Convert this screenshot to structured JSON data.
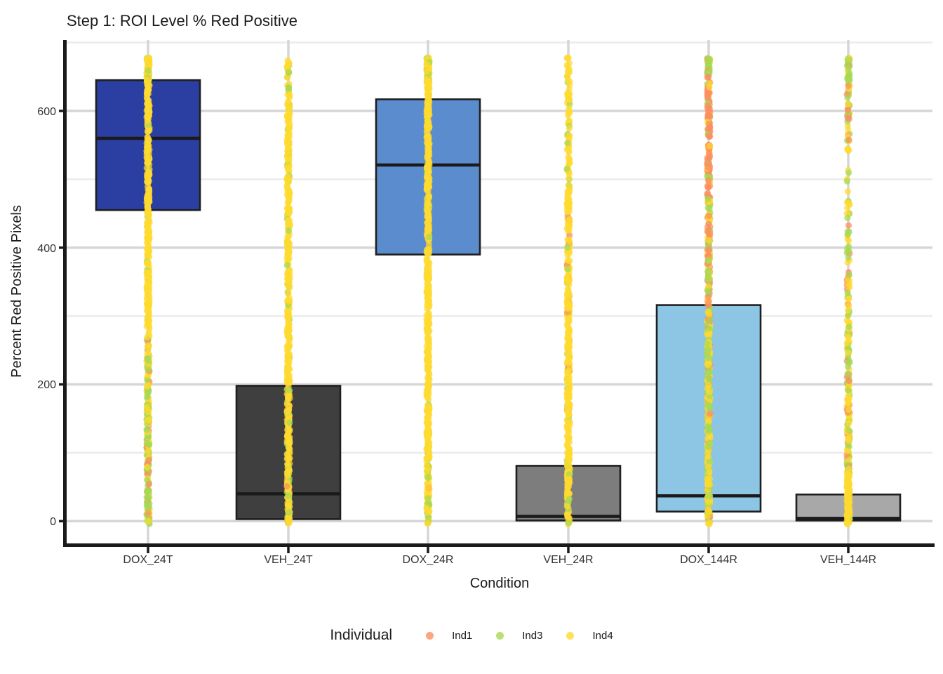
{
  "title": "Step 1: ROI Level % Red Positive",
  "axes": {
    "x_label": "Condition",
    "y_label": "Percent Red Positive Pixels"
  },
  "legend": {
    "title": "Individual",
    "items": [
      {
        "label": "Ind1",
        "color": "#FC8D62"
      },
      {
        "label": "Ind3",
        "color": "#A6D854"
      },
      {
        "label": "Ind4",
        "color": "#FFD92F"
      }
    ]
  },
  "chart_data": {
    "type": "boxplot+jitter",
    "title": "Step 1: ROI Level % Red Positive",
    "xlabel": "Condition",
    "ylabel": "Percent Red Positive Pixels",
    "categories": [
      "DOX_24T",
      "VEH_24T",
      "DOX_24R",
      "VEH_24R",
      "DOX_144R",
      "VEH_144R"
    ],
    "y_axis": {
      "ticks": [
        0,
        200,
        400,
        600
      ],
      "tick_labels": [
        "0",
        "200",
        "400",
        "600"
      ],
      "minor_ticks": [
        100,
        300,
        500,
        700
      ],
      "range": [
        -30,
        700
      ]
    },
    "style": {
      "grid_major": "#D6D6D6",
      "grid_minor": "#EBEBEB",
      "axis_line": "#1A1A1A",
      "box_border": "#1F1F1F",
      "median_line": "#1A1A1A",
      "background": "#FFFFFF"
    },
    "boxes": [
      {
        "condition": "DOX_24T",
        "fill": "#2B3EA1",
        "q1": 455,
        "median": 560,
        "q3": 645
      },
      {
        "condition": "VEH_24T",
        "fill": "#3F3F3F",
        "q1": 3,
        "median": 40,
        "q3": 198
      },
      {
        "condition": "DOX_24R",
        "fill": "#5B8CCD",
        "q1": 390,
        "median": 521,
        "q3": 617
      },
      {
        "condition": "VEH_24R",
        "fill": "#7D7D7D",
        "q1": 1,
        "median": 7,
        "q3": 81
      },
      {
        "condition": "DOX_144R",
        "fill": "#8CC6E4",
        "q1": 14,
        "median": 37,
        "q3": 316
      },
      {
        "condition": "VEH_144R",
        "fill": "#A8A8A8",
        "q1": 1,
        "median": 4,
        "q3": 39
      }
    ],
    "points": {
      "alpha": 0.72,
      "radius": 4.6,
      "jitter_halfwidth": 2,
      "value_cap": 678,
      "individual_colors": {
        "Ind1": "#FC8D62",
        "Ind3": "#A6D854",
        "Ind4": "#FFD92F"
      },
      "strips": [
        {
          "condition": "DOX_24T",
          "segments": [
            {
              "v_min": 640,
              "v_max": 678,
              "n": 80,
              "mix": {
                "Ind4": 0.92,
                "Ind3": 0.08
              }
            },
            {
              "v_min": 270,
              "v_max": 640,
              "n": 300,
              "mix": {
                "Ind4": 0.97,
                "Ind3": 0.03
              }
            },
            {
              "v_min": 150,
              "v_max": 270,
              "n": 90,
              "mix": {
                "Ind3": 0.5,
                "Ind4": 0.45,
                "Ind1": 0.05
              }
            },
            {
              "v_min": -5,
              "v_max": 150,
              "n": 130,
              "mix": {
                "Ind3": 0.55,
                "Ind4": 0.28,
                "Ind1": 0.17
              }
            }
          ]
        },
        {
          "condition": "VEH_24T",
          "segments": [
            {
              "v_min": 600,
              "v_max": 678,
              "n": 45,
              "mix": {
                "Ind4": 0.8,
                "Ind3": 0.2
              }
            },
            {
              "v_min": 200,
              "v_max": 600,
              "n": 280,
              "mix": {
                "Ind4": 0.95,
                "Ind3": 0.05
              }
            },
            {
              "v_min": -5,
              "v_max": 200,
              "n": 170,
              "mix": {
                "Ind4": 0.75,
                "Ind3": 0.22,
                "Ind1": 0.03
              }
            }
          ]
        },
        {
          "condition": "DOX_24R",
          "segments": [
            {
              "v_min": 645,
              "v_max": 678,
              "n": 60,
              "mix": {
                "Ind4": 0.8,
                "Ind3": 0.2
              }
            },
            {
              "v_min": 110,
              "v_max": 645,
              "n": 420,
              "mix": {
                "Ind4": 0.97,
                "Ind3": 0.03
              }
            },
            {
              "v_min": -5,
              "v_max": 110,
              "n": 95,
              "mix": {
                "Ind4": 0.7,
                "Ind3": 0.27,
                "Ind1": 0.03
              }
            }
          ]
        },
        {
          "condition": "VEH_24R",
          "segments": [
            {
              "v_min": 580,
              "v_max": 678,
              "n": 40,
              "mix": {
                "Ind4": 0.85,
                "Ind3": 0.15
              }
            },
            {
              "v_min": 470,
              "v_max": 580,
              "n": 45,
              "mix": {
                "Ind4": 0.9,
                "Ind3": 0.1
              }
            },
            {
              "v_min": -5,
              "v_max": 470,
              "n": 380,
              "mix": {
                "Ind4": 0.88,
                "Ind3": 0.08,
                "Ind1": 0.04
              }
            }
          ]
        },
        {
          "condition": "DOX_144R",
          "segments": [
            {
              "v_min": 652,
              "v_max": 678,
              "n": 30,
              "mix": {
                "Ind3": 0.7,
                "Ind1": 0.2,
                "Ind4": 0.1
              }
            },
            {
              "v_min": 490,
              "v_max": 652,
              "n": 130,
              "mix": {
                "Ind1": 0.72,
                "Ind3": 0.16,
                "Ind4": 0.12
              }
            },
            {
              "v_min": 280,
              "v_max": 490,
              "n": 150,
              "mix": {
                "Ind1": 0.34,
                "Ind4": 0.36,
                "Ind3": 0.3
              }
            },
            {
              "v_min": -5,
              "v_max": 280,
              "n": 230,
              "mix": {
                "Ind4": 0.52,
                "Ind3": 0.36,
                "Ind1": 0.12
              }
            }
          ]
        },
        {
          "condition": "VEH_144R",
          "segments": [
            {
              "v_min": 640,
              "v_max": 678,
              "n": 32,
              "mix": {
                "Ind3": 0.75,
                "Ind4": 0.2,
                "Ind1": 0.05
              }
            },
            {
              "v_min": 555,
              "v_max": 640,
              "n": 38,
              "mix": {
                "Ind4": 0.45,
                "Ind3": 0.35,
                "Ind1": 0.2
              }
            },
            {
              "v_min": 450,
              "v_max": 555,
              "n": 16,
              "mix": {
                "Ind4": 0.7,
                "Ind3": 0.3
              }
            },
            {
              "v_min": 290,
              "v_max": 450,
              "n": 48,
              "mix": {
                "Ind4": 0.5,
                "Ind3": 0.4,
                "Ind1": 0.1
              }
            },
            {
              "v_min": 165,
              "v_max": 290,
              "n": 62,
              "mix": {
                "Ind3": 0.55,
                "Ind4": 0.33,
                "Ind1": 0.12
              }
            },
            {
              "v_min": 70,
              "v_max": 165,
              "n": 70,
              "mix": {
                "Ind4": 0.5,
                "Ind3": 0.35,
                "Ind1": 0.15
              }
            },
            {
              "v_min": -5,
              "v_max": 70,
              "n": 95,
              "mix": {
                "Ind4": 0.9,
                "Ind3": 0.1
              }
            }
          ]
        }
      ]
    }
  }
}
